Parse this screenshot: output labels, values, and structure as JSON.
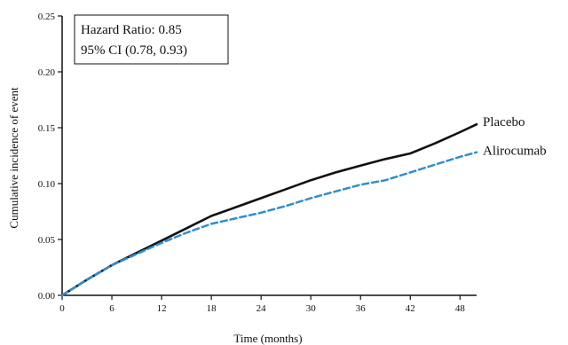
{
  "chart_data": {
    "type": "line",
    "xlabel": "Time (months)",
    "ylabel": "Cumulative incidence of event",
    "xlim": [
      0,
      50
    ],
    "ylim": [
      0,
      0.25
    ],
    "xticks": [
      0,
      6,
      12,
      18,
      24,
      30,
      36,
      42,
      48
    ],
    "yticks": [
      0.0,
      0.05,
      0.1,
      0.15,
      0.2,
      0.25
    ],
    "annotation": {
      "hazard_ratio": "Hazard Ratio: 0.85",
      "ci": "95% CI (0.78, 0.93)"
    },
    "series": [
      {
        "name": "Placebo",
        "color": "#111111",
        "style": "solid",
        "x": [
          0,
          3,
          6,
          9,
          12,
          15,
          18,
          21,
          24,
          27,
          30,
          33,
          36,
          39,
          42,
          45,
          48,
          50
        ],
        "y": [
          0,
          0.014,
          0.027,
          0.038,
          0.049,
          0.06,
          0.071,
          0.079,
          0.087,
          0.095,
          0.103,
          0.11,
          0.116,
          0.122,
          0.127,
          0.136,
          0.146,
          0.153
        ]
      },
      {
        "name": "Alirocumab",
        "color": "#2f8fce",
        "style": "dashed",
        "x": [
          0,
          3,
          6,
          9,
          12,
          15,
          18,
          21,
          24,
          27,
          30,
          33,
          36,
          39,
          42,
          45,
          48,
          50
        ],
        "y": [
          0,
          0.014,
          0.027,
          0.037,
          0.047,
          0.056,
          0.064,
          0.069,
          0.074,
          0.08,
          0.087,
          0.093,
          0.099,
          0.103,
          0.11,
          0.117,
          0.124,
          0.128
        ]
      }
    ]
  }
}
